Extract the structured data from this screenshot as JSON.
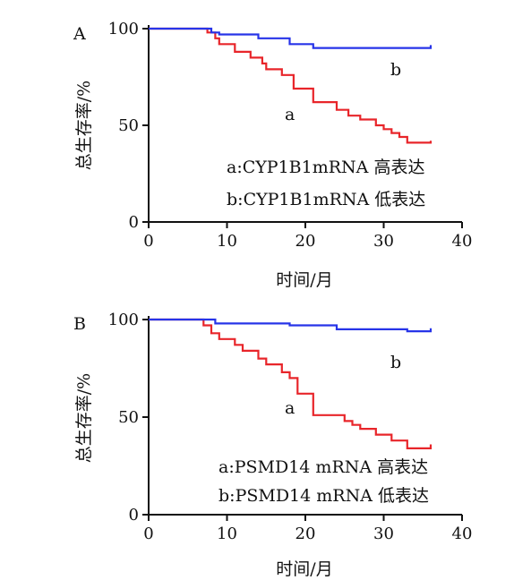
{
  "chart_data": [
    {
      "panel_label": "A",
      "type": "line",
      "xlabel": "时间/月",
      "ylabel": "总生存率/%",
      "xlim": [
        0,
        40
      ],
      "ylim": [
        0,
        100
      ],
      "xticks": [
        0,
        10,
        20,
        30,
        40
      ],
      "yticks": [
        0,
        50,
        100
      ],
      "legend": [
        "a:CYP1B1mRNA 高表达",
        "b:CYP1B1mRNA 低表达"
      ],
      "series": [
        {
          "name": "a",
          "color": "#e8252a",
          "step": true,
          "points": [
            [
              0,
              100
            ],
            [
              7.5,
              100
            ],
            [
              7.5,
              98
            ],
            [
              8.5,
              98
            ],
            [
              8.5,
              95
            ],
            [
              9,
              95
            ],
            [
              9,
              92
            ],
            [
              11,
              92
            ],
            [
              11,
              88
            ],
            [
              13,
              88
            ],
            [
              13,
              85
            ],
            [
              14.5,
              85
            ],
            [
              14.5,
              82
            ],
            [
              15,
              82
            ],
            [
              15,
              79
            ],
            [
              17,
              79
            ],
            [
              17,
              76
            ],
            [
              18.5,
              76
            ],
            [
              18.5,
              69
            ],
            [
              21,
              69
            ],
            [
              21,
              62
            ],
            [
              24,
              62
            ],
            [
              24,
              58
            ],
            [
              25.5,
              58
            ],
            [
              25.5,
              55
            ],
            [
              27,
              55
            ],
            [
              27,
              53
            ],
            [
              29,
              53
            ],
            [
              29,
              50
            ],
            [
              30,
              50
            ],
            [
              30,
              48
            ],
            [
              31,
              48
            ],
            [
              31,
              46
            ],
            [
              32,
              46
            ],
            [
              32,
              44
            ],
            [
              33,
              44
            ],
            [
              33,
              41
            ],
            [
              36,
              41
            ],
            [
              36,
              42
            ]
          ]
        },
        {
          "name": "b",
          "color": "#2734e8",
          "step": true,
          "points": [
            [
              0,
              100
            ],
            [
              8,
              100
            ],
            [
              8,
              98
            ],
            [
              9,
              98
            ],
            [
              9,
              97
            ],
            [
              14,
              97
            ],
            [
              14,
              95
            ],
            [
              18,
              95
            ],
            [
              18,
              92
            ],
            [
              21,
              92
            ],
            [
              21,
              90
            ],
            [
              36,
              90
            ],
            [
              36,
              91.5
            ]
          ]
        }
      ]
    },
    {
      "panel_label": "B",
      "type": "line",
      "xlabel": "时间/月",
      "ylabel": "总生存率/%",
      "xlim": [
        0,
        40
      ],
      "ylim": [
        0,
        100
      ],
      "xticks": [
        0,
        10,
        20,
        30,
        40
      ],
      "yticks": [
        0,
        50,
        100
      ],
      "legend": [
        "a:PSMD14 mRNA 高表达",
        "b:PSMD14 mRNA 低表达"
      ],
      "series": [
        {
          "name": "a",
          "color": "#e8252a",
          "step": true,
          "points": [
            [
              0,
              100
            ],
            [
              7,
              100
            ],
            [
              7,
              97
            ],
            [
              8,
              97
            ],
            [
              8,
              93
            ],
            [
              9,
              93
            ],
            [
              9,
              90
            ],
            [
              11,
              90
            ],
            [
              11,
              87
            ],
            [
              12,
              87
            ],
            [
              12,
              84
            ],
            [
              14,
              84
            ],
            [
              14,
              80
            ],
            [
              15,
              80
            ],
            [
              15,
              77
            ],
            [
              17,
              77
            ],
            [
              17,
              73
            ],
            [
              18,
              73
            ],
            [
              18,
              70
            ],
            [
              19,
              70
            ],
            [
              19,
              62
            ],
            [
              21,
              62
            ],
            [
              21,
              51
            ],
            [
              25,
              51
            ],
            [
              25,
              48
            ],
            [
              26,
              48
            ],
            [
              26,
              46
            ],
            [
              27,
              46
            ],
            [
              27,
              44
            ],
            [
              29,
              44
            ],
            [
              29,
              41
            ],
            [
              31,
              41
            ],
            [
              31,
              38
            ],
            [
              33,
              38
            ],
            [
              33,
              34
            ],
            [
              36,
              34
            ],
            [
              36,
              36
            ]
          ]
        },
        {
          "name": "b",
          "color": "#2734e8",
          "step": true,
          "points": [
            [
              0,
              100
            ],
            [
              8.5,
              100
            ],
            [
              8.5,
              98
            ],
            [
              18,
              98
            ],
            [
              18,
              97
            ],
            [
              24,
              97
            ],
            [
              24,
              95
            ],
            [
              33,
              95
            ],
            [
              33,
              94
            ],
            [
              36,
              94
            ],
            [
              36,
              95.5
            ]
          ]
        }
      ]
    }
  ]
}
